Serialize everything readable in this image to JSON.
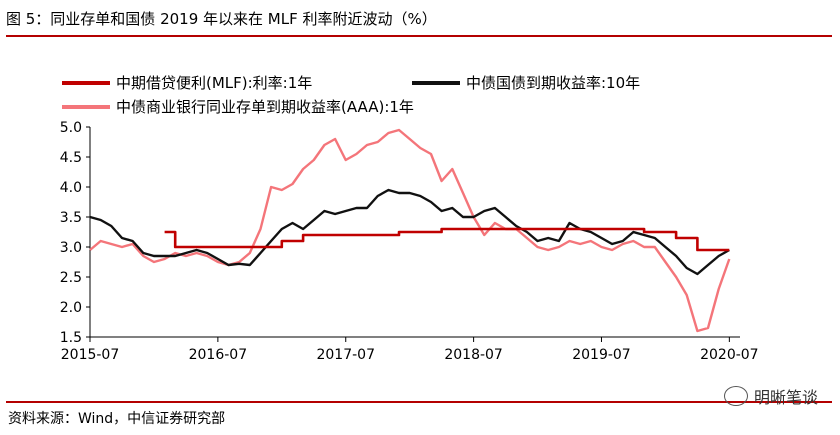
{
  "figure_title": "图 5：同业存单和国债 2019 年以来在 MLF 利率附近波动（%）",
  "source_note": "资料来源：Wind，中信证券研究部",
  "watermark": {
    "text": "明晰笔谈",
    "icon": "wechat-icon"
  },
  "colors": {
    "mlf": "#c00000",
    "cgb": "#111111",
    "ncd": "#f4757a",
    "rule": "#b40000"
  },
  "chart_data": {
    "type": "line",
    "xlabel": "",
    "ylabel": "",
    "ylim": [
      1.5,
      5.0
    ],
    "yticks": [
      "5.0",
      "4.5",
      "4.0",
      "3.5",
      "3.0",
      "2.5",
      "2.0",
      "1.5"
    ],
    "xlim": [
      "2015-07",
      "2020-08"
    ],
    "xticks": [
      "2015-07",
      "2016-07",
      "2017-07",
      "2018-07",
      "2019-07",
      "2020-07"
    ],
    "grid": false,
    "legend_position": "top",
    "series": [
      {
        "name": "中期借贷便利(MLF):利率:1年",
        "key": "mlf",
        "step": true,
        "points": [
          [
            "2016-02",
            3.25
          ],
          [
            "2016-03",
            3.25
          ],
          [
            "2016-03",
            3.0
          ],
          [
            "2017-01",
            3.0
          ],
          [
            "2017-01",
            3.1
          ],
          [
            "2017-03",
            3.1
          ],
          [
            "2017-03",
            3.2
          ],
          [
            "2017-12",
            3.2
          ],
          [
            "2017-12",
            3.25
          ],
          [
            "2018-04",
            3.25
          ],
          [
            "2018-04",
            3.3
          ],
          [
            "2019-11",
            3.3
          ],
          [
            "2019-11",
            3.25
          ],
          [
            "2020-02",
            3.25
          ],
          [
            "2020-02",
            3.15
          ],
          [
            "2020-04",
            3.15
          ],
          [
            "2020-04",
            2.95
          ],
          [
            "2020-07",
            2.95
          ]
        ]
      },
      {
        "name": "中债国债到期收益率:10年",
        "key": "cgb",
        "step": false,
        "points": [
          [
            "2015-07",
            3.5
          ],
          [
            "2015-08",
            3.45
          ],
          [
            "2015-09",
            3.35
          ],
          [
            "2015-10",
            3.15
          ],
          [
            "2015-11",
            3.1
          ],
          [
            "2015-12",
            2.9
          ],
          [
            "2016-01",
            2.85
          ],
          [
            "2016-02",
            2.85
          ],
          [
            "2016-03",
            2.85
          ],
          [
            "2016-04",
            2.9
          ],
          [
            "2016-05",
            2.95
          ],
          [
            "2016-06",
            2.9
          ],
          [
            "2016-07",
            2.8
          ],
          [
            "2016-08",
            2.7
          ],
          [
            "2016-09",
            2.72
          ],
          [
            "2016-10",
            2.7
          ],
          [
            "2016-11",
            2.9
          ],
          [
            "2016-12",
            3.1
          ],
          [
            "2017-01",
            3.3
          ],
          [
            "2017-02",
            3.4
          ],
          [
            "2017-03",
            3.3
          ],
          [
            "2017-04",
            3.45
          ],
          [
            "2017-05",
            3.6
          ],
          [
            "2017-06",
            3.55
          ],
          [
            "2017-07",
            3.6
          ],
          [
            "2017-08",
            3.65
          ],
          [
            "2017-09",
            3.65
          ],
          [
            "2017-10",
            3.85
          ],
          [
            "2017-11",
            3.95
          ],
          [
            "2017-12",
            3.9
          ],
          [
            "2018-01",
            3.9
          ],
          [
            "2018-02",
            3.85
          ],
          [
            "2018-03",
            3.75
          ],
          [
            "2018-04",
            3.6
          ],
          [
            "2018-05",
            3.65
          ],
          [
            "2018-06",
            3.5
          ],
          [
            "2018-07",
            3.5
          ],
          [
            "2018-08",
            3.6
          ],
          [
            "2018-09",
            3.65
          ],
          [
            "2018-10",
            3.5
          ],
          [
            "2018-11",
            3.35
          ],
          [
            "2018-12",
            3.25
          ],
          [
            "2019-01",
            3.1
          ],
          [
            "2019-02",
            3.15
          ],
          [
            "2019-03",
            3.1
          ],
          [
            "2019-04",
            3.4
          ],
          [
            "2019-05",
            3.3
          ],
          [
            "2019-06",
            3.25
          ],
          [
            "2019-07",
            3.15
          ],
          [
            "2019-08",
            3.05
          ],
          [
            "2019-09",
            3.1
          ],
          [
            "2019-10",
            3.25
          ],
          [
            "2019-11",
            3.2
          ],
          [
            "2019-12",
            3.15
          ],
          [
            "2020-01",
            3.0
          ],
          [
            "2020-02",
            2.85
          ],
          [
            "2020-03",
            2.65
          ],
          [
            "2020-04",
            2.55
          ],
          [
            "2020-05",
            2.7
          ],
          [
            "2020-06",
            2.85
          ],
          [
            "2020-07",
            2.95
          ]
        ]
      },
      {
        "name": "中债商业银行同业存单到期收益率(AAA):1年",
        "key": "ncd",
        "step": false,
        "points": [
          [
            "2015-07",
            2.95
          ],
          [
            "2015-08",
            3.1
          ],
          [
            "2015-09",
            3.05
          ],
          [
            "2015-10",
            3.0
          ],
          [
            "2015-11",
            3.05
          ],
          [
            "2015-12",
            2.85
          ],
          [
            "2016-01",
            2.75
          ],
          [
            "2016-02",
            2.8
          ],
          [
            "2016-03",
            2.9
          ],
          [
            "2016-04",
            2.85
          ],
          [
            "2016-05",
            2.9
          ],
          [
            "2016-06",
            2.85
          ],
          [
            "2016-07",
            2.75
          ],
          [
            "2016-08",
            2.7
          ],
          [
            "2016-09",
            2.75
          ],
          [
            "2016-10",
            2.9
          ],
          [
            "2016-11",
            3.3
          ],
          [
            "2016-12",
            4.0
          ],
          [
            "2017-01",
            3.95
          ],
          [
            "2017-02",
            4.05
          ],
          [
            "2017-03",
            4.3
          ],
          [
            "2017-04",
            4.45
          ],
          [
            "2017-05",
            4.7
          ],
          [
            "2017-06",
            4.8
          ],
          [
            "2017-07",
            4.45
          ],
          [
            "2017-08",
            4.55
          ],
          [
            "2017-09",
            4.7
          ],
          [
            "2017-10",
            4.75
          ],
          [
            "2017-11",
            4.9
          ],
          [
            "2017-12",
            4.95
          ],
          [
            "2018-01",
            4.8
          ],
          [
            "2018-02",
            4.65
          ],
          [
            "2018-03",
            4.55
          ],
          [
            "2018-04",
            4.1
          ],
          [
            "2018-05",
            4.3
          ],
          [
            "2018-06",
            3.9
          ],
          [
            "2018-07",
            3.5
          ],
          [
            "2018-08",
            3.2
          ],
          [
            "2018-09",
            3.4
          ],
          [
            "2018-10",
            3.3
          ],
          [
            "2018-11",
            3.3
          ],
          [
            "2018-12",
            3.15
          ],
          [
            "2019-01",
            3.0
          ],
          [
            "2019-02",
            2.95
          ],
          [
            "2019-03",
            3.0
          ],
          [
            "2019-04",
            3.1
          ],
          [
            "2019-05",
            3.05
          ],
          [
            "2019-06",
            3.1
          ],
          [
            "2019-07",
            3.0
          ],
          [
            "2019-08",
            2.95
          ],
          [
            "2019-09",
            3.05
          ],
          [
            "2019-10",
            3.1
          ],
          [
            "2019-11",
            3.0
          ],
          [
            "2019-12",
            3.0
          ],
          [
            "2020-01",
            2.75
          ],
          [
            "2020-02",
            2.5
          ],
          [
            "2020-03",
            2.2
          ],
          [
            "2020-04",
            1.6
          ],
          [
            "2020-05",
            1.65
          ],
          [
            "2020-06",
            2.3
          ],
          [
            "2020-07",
            2.8
          ]
        ]
      }
    ]
  }
}
